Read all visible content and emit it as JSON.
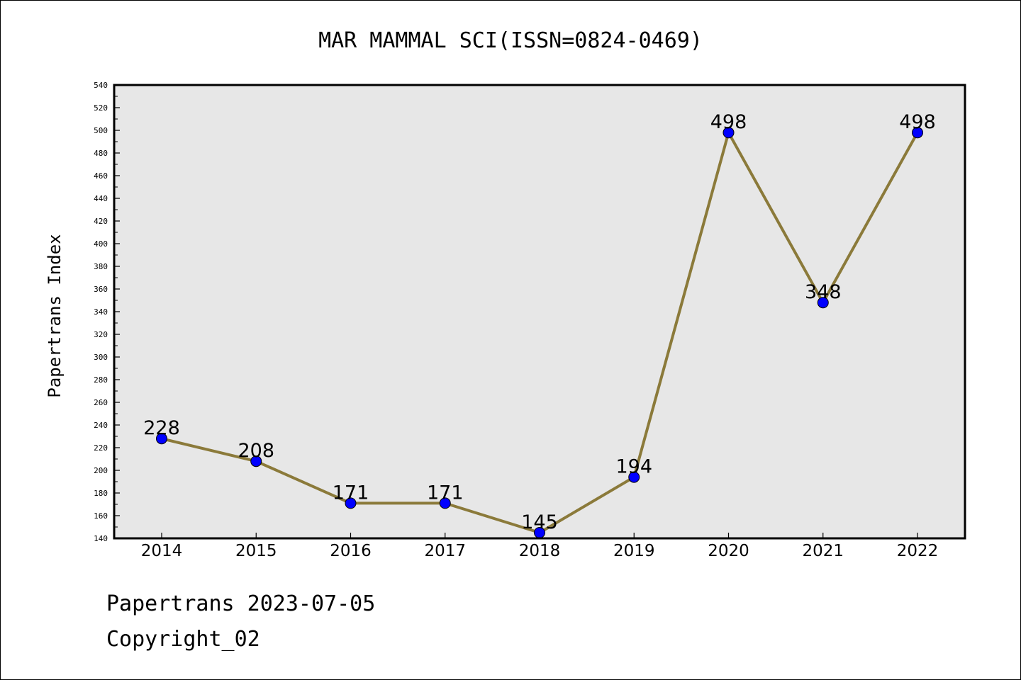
{
  "chart_data": {
    "type": "line",
    "title": "MAR MAMMAL SCI(ISSN=0824-0469)",
    "xlabel": "",
    "ylabel": "Papertrans Index",
    "categories": [
      "2014",
      "2015",
      "2016",
      "2017",
      "2018",
      "2019",
      "2020",
      "2021",
      "2022"
    ],
    "values": [
      228,
      208,
      171,
      171,
      145,
      194,
      498,
      348,
      498
    ],
    "data_labels": [
      "228",
      "208",
      "171",
      "171",
      "145",
      "194",
      "498",
      "348",
      "498"
    ],
    "ylim": [
      140,
      540
    ],
    "yticks": [
      140,
      160,
      180,
      200,
      220,
      240,
      260,
      280,
      300,
      320,
      340,
      360,
      380,
      400,
      420,
      440,
      460,
      480,
      500,
      520,
      540
    ],
    "grid": false,
    "line_color": "#8b7a3a",
    "marker_color": "#0000ff",
    "plot_background": "#e7e7e7"
  },
  "footer": {
    "line1": "Papertrans 2023-07-05",
    "line2": "Copyright_02"
  }
}
